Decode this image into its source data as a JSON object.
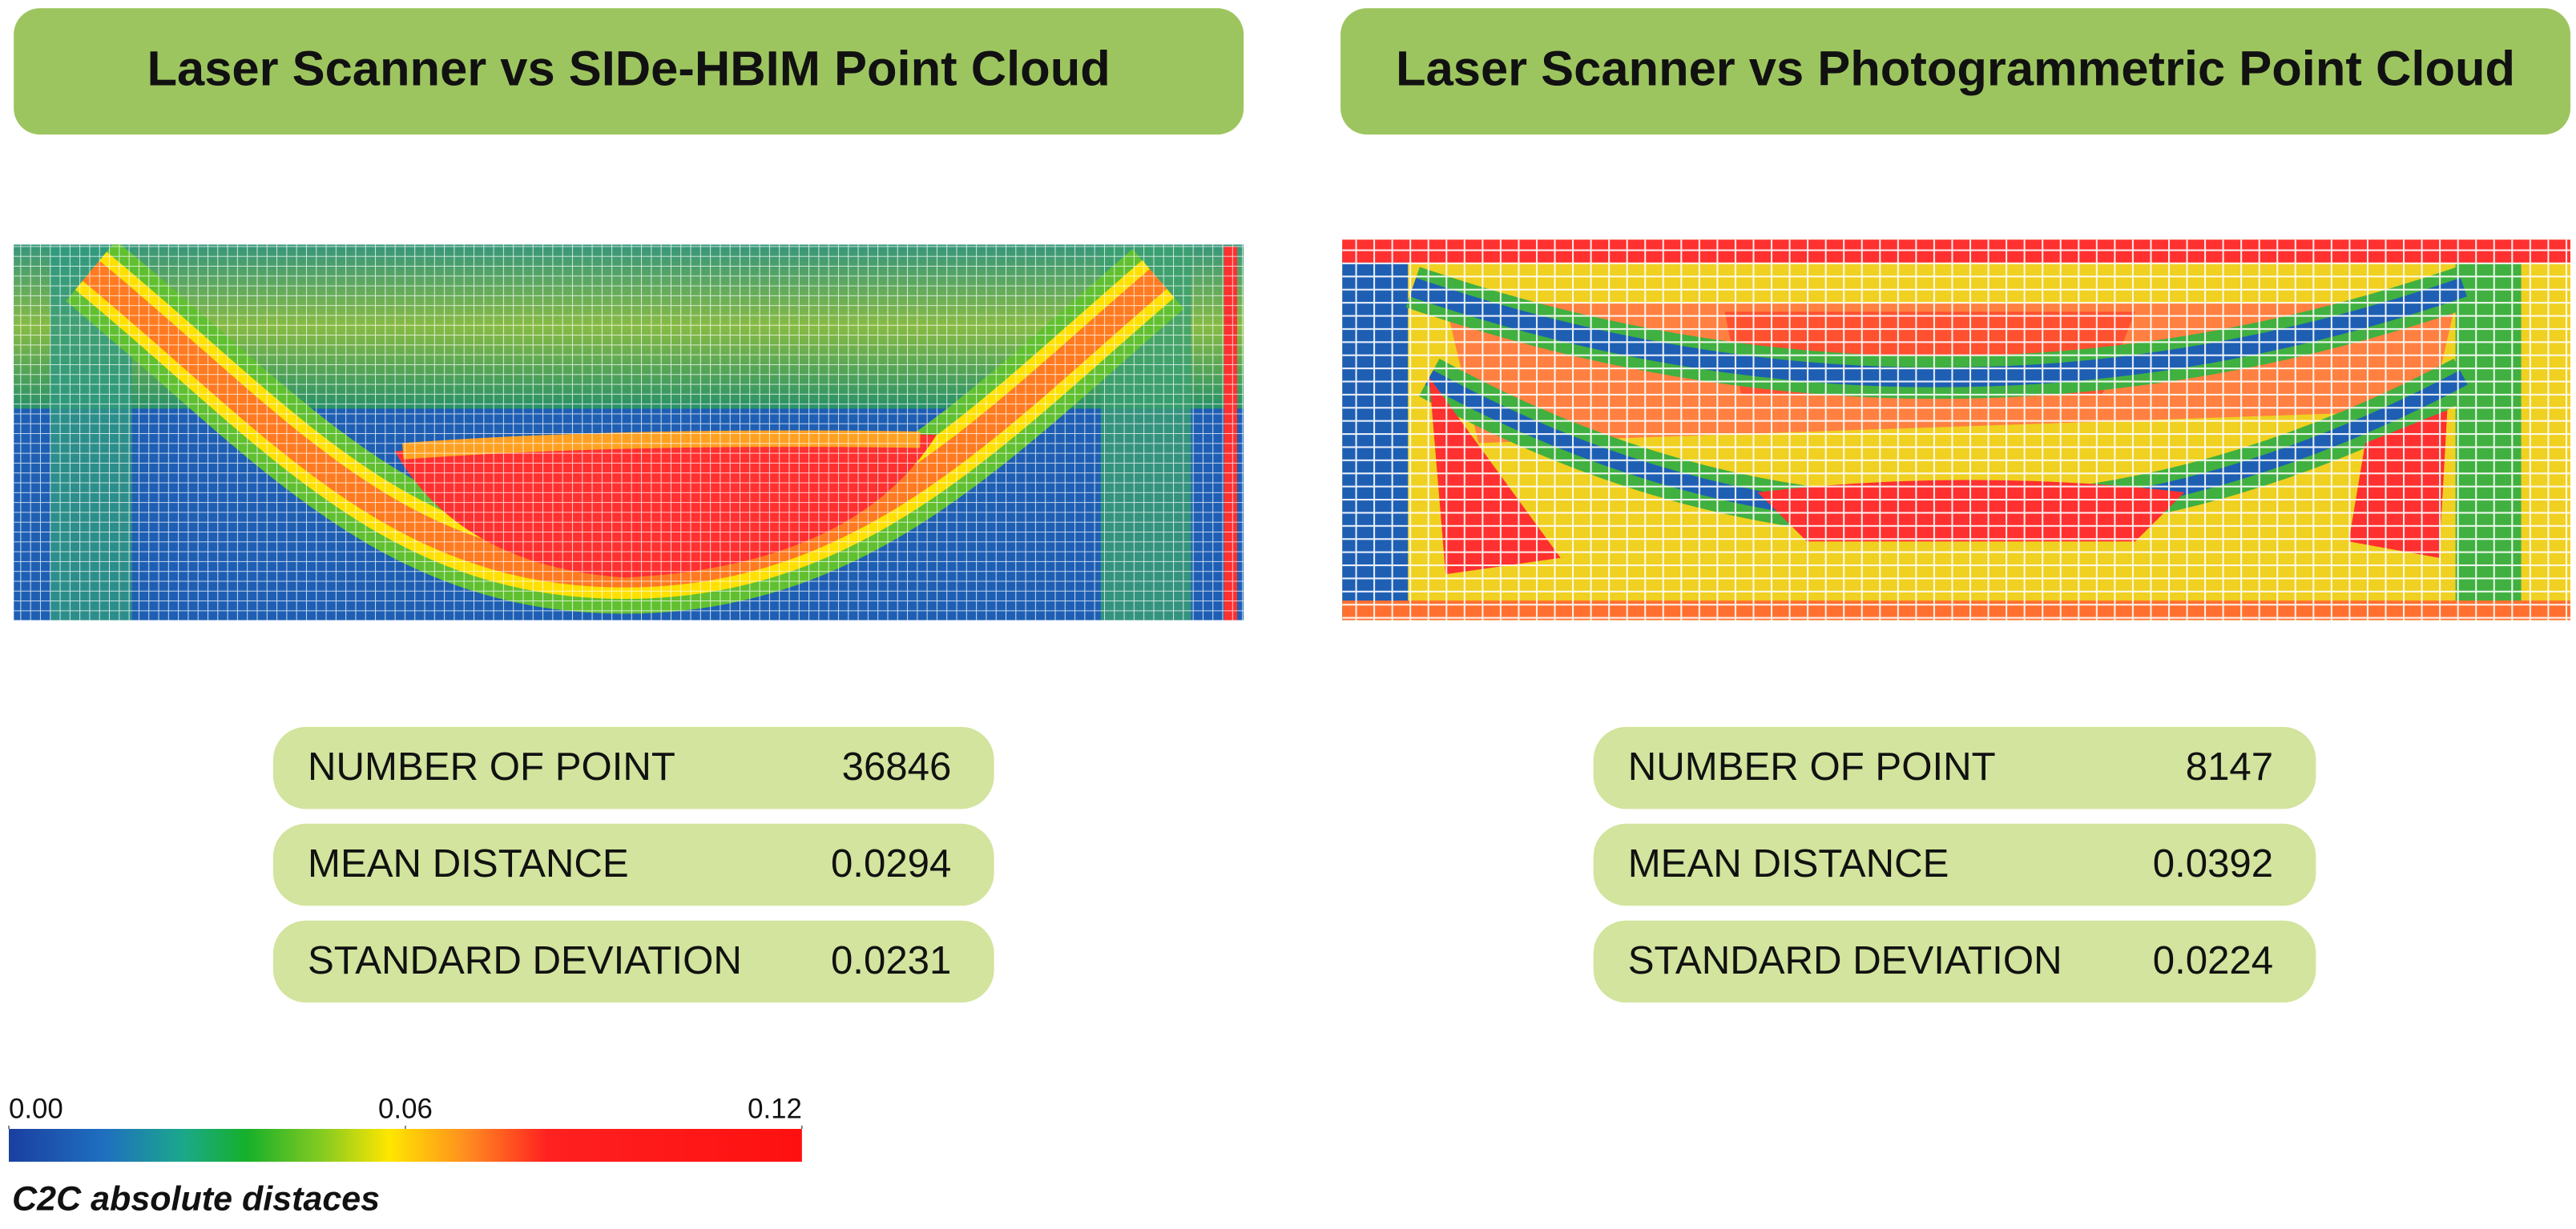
{
  "panels": [
    {
      "title": "Laser Scanner vs SIDe-HBIM Point Cloud",
      "stats": [
        {
          "label": "NUMBER OF POINT",
          "value": 36846
        },
        {
          "label": "MEAN DISTANCE",
          "value": 0.0294
        },
        {
          "label": "STANDARD DEVIATION",
          "value": 0.0231
        }
      ]
    },
    {
      "title": "Laser Scanner vs Photogrammetric Point Cloud",
      "stats": [
        {
          "label": "NUMBER OF POINT",
          "value": 8147
        },
        {
          "label": "MEAN DISTANCE",
          "value": 0.0392
        },
        {
          "label": "STANDARD DEVIATION",
          "value": 0.0224
        }
      ]
    }
  ],
  "colorbar": {
    "xlim": [
      0,
      0.12
    ],
    "ticks": [
      {
        "value": 0,
        "label": "0.00"
      },
      {
        "value": 0.06,
        "label": "0.06"
      },
      {
        "value": 0.12,
        "label": "0.12"
      }
    ],
    "caption": "C2C absolute distaces"
  }
}
